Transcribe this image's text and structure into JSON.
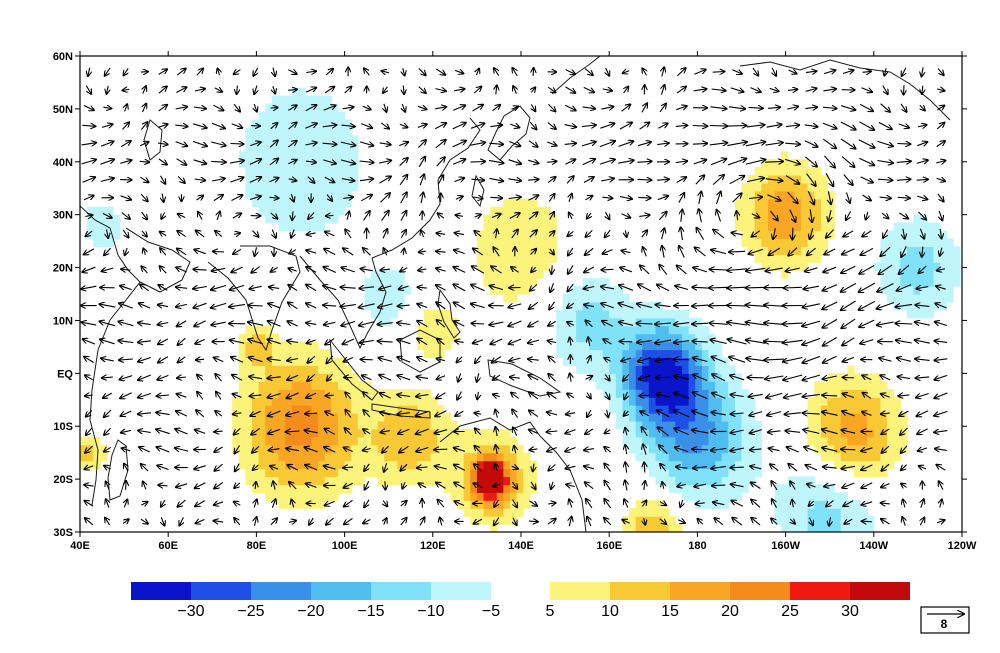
{
  "map": {
    "lon_labels": [
      "40E",
      "60E",
      "80E",
      "100E",
      "120E",
      "140E",
      "160E",
      "180",
      "160W",
      "140W",
      "120W"
    ],
    "lat_labels": [
      "60N",
      "50N",
      "40N",
      "30N",
      "20N",
      "10N",
      "EQ",
      "10S",
      "20S",
      "30S"
    ],
    "extent": {
      "lon_min_east": 40,
      "lon_max_east": 240,
      "lat_min": -30,
      "lat_max": 60
    }
  },
  "colorbar": {
    "negative_colors": [
      "#0a14c8",
      "#1e4fe6",
      "#3a8fe8",
      "#4fbdf0",
      "#7fe2f8",
      "#bff6fc"
    ],
    "negative_labels": [
      "−30",
      "−25",
      "−20",
      "−15",
      "−10",
      "−5"
    ],
    "positive_colors": [
      "#fbf37a",
      "#f8c934",
      "#f8a623",
      "#f48c1c",
      "#ee1a12",
      "#c20a0a"
    ],
    "positive_labels": [
      "5",
      "10",
      "15",
      "20",
      "25",
      "30"
    ]
  },
  "reference_vector": {
    "value": "8"
  },
  "anomaly_centers": [
    {
      "lon": 172,
      "lat": 0,
      "value": -32,
      "spread": 9
    },
    {
      "lon": 180,
      "lat": -12,
      "value": -20,
      "spread": 12
    },
    {
      "lon": 155,
      "lat": 10,
      "value": -12,
      "spread": 10
    },
    {
      "lon": 210,
      "lat": -25,
      "value": -14,
      "spread": 12
    },
    {
      "lon": 90,
      "lat": 40,
      "value": -10,
      "spread": 16
    },
    {
      "lon": 230,
      "lat": 20,
      "value": -12,
      "spread": 10
    },
    {
      "lon": 110,
      "lat": 14,
      "value": -8,
      "spread": 8
    },
    {
      "lon": 45,
      "lat": 28,
      "value": -8,
      "spread": 6
    },
    {
      "lon": 90,
      "lat": -10,
      "value": 22,
      "spread": 13
    },
    {
      "lon": 115,
      "lat": -12,
      "value": 14,
      "spread": 9
    },
    {
      "lon": 133,
      "lat": -20,
      "value": 30,
      "spread": 4
    },
    {
      "lon": 134,
      "lat": -20,
      "value": 14,
      "spread": 9
    },
    {
      "lon": 215,
      "lat": -12,
      "value": 20,
      "spread": 11
    },
    {
      "lon": 200,
      "lat": 30,
      "value": 18,
      "spread": 10
    },
    {
      "lon": 140,
      "lat": 23,
      "value": 10,
      "spread": 12
    },
    {
      "lon": 170,
      "lat": -30,
      "value": 16,
      "spread": 7
    },
    {
      "lon": 42,
      "lat": -15,
      "value": 12,
      "spread": 4
    },
    {
      "lon": 80,
      "lat": 5,
      "value": 10,
      "spread": 4
    },
    {
      "lon": 120,
      "lat": 8,
      "value": 10,
      "spread": 6
    }
  ]
}
